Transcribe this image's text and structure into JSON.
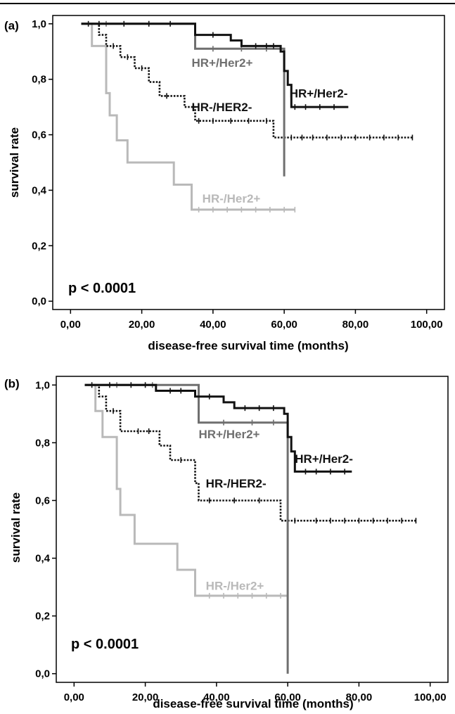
{
  "panels": [
    {
      "label": "(a)",
      "pvalue": "p < 0.0001"
    },
    {
      "label": "(b)",
      "pvalue": "p < 0.0001"
    }
  ],
  "chart_data": [
    {
      "type": "line",
      "subtype": "kaplan-meier step",
      "xlabel": "disease-free survival time (months)",
      "ylabel": "survival rate",
      "xlim": [
        -5,
        105
      ],
      "ylim": [
        -0.03,
        1.03
      ],
      "xticks": [
        0,
        20,
        40,
        60,
        80,
        100
      ],
      "xticklabels": [
        "0,00",
        "20,00",
        "40,00",
        "60,00",
        "80,00",
        "100,00"
      ],
      "yticks": [
        0,
        0.2,
        0.4,
        0.6,
        0.8,
        1.0
      ],
      "yticklabels": [
        "0,0",
        "0,2",
        "0,4",
        "0,6",
        "0,8",
        "1,0"
      ],
      "annotation": "p < 0.0001",
      "series": [
        {
          "name": "HR+/Her2-",
          "color": "#111111",
          "style": "solid",
          "points": [
            [
              3,
              1.0
            ],
            [
              35,
              1.0
            ],
            [
              35,
              0.96
            ],
            [
              45,
              0.96
            ],
            [
              45,
              0.94
            ],
            [
              48,
              0.94
            ],
            [
              48,
              0.92
            ],
            [
              59,
              0.92
            ],
            [
              59,
              0.9
            ],
            [
              60,
              0.9
            ],
            [
              60,
              0.83
            ],
            [
              61,
              0.83
            ],
            [
              61,
              0.78
            ],
            [
              62,
              0.78
            ],
            [
              62,
              0.7
            ],
            [
              78,
              0.7
            ]
          ],
          "censor_x": [
            8,
            15,
            22,
            28,
            40,
            52,
            55,
            57,
            63,
            66,
            70,
            74
          ],
          "label_xy": [
            61.5,
            0.735
          ]
        },
        {
          "name": "HR+/Her2+",
          "color": "#6f6f6f",
          "style": "solid",
          "points": [
            [
              3,
              1.0
            ],
            [
              35,
              1.0
            ],
            [
              35,
              0.91
            ],
            [
              60,
              0.91
            ],
            [
              60,
              0.45
            ]
          ],
          "censor_x": [
            10,
            22,
            40,
            48,
            55
          ],
          "label_xy": [
            34,
            0.845
          ]
        },
        {
          "name": "HR-/HER2-",
          "color": "#111111",
          "style": "dotted",
          "points": [
            [
              3,
              1.0
            ],
            [
              8,
              1.0
            ],
            [
              8,
              0.96
            ],
            [
              10,
              0.96
            ],
            [
              10,
              0.92
            ],
            [
              14,
              0.92
            ],
            [
              14,
              0.88
            ],
            [
              18,
              0.88
            ],
            [
              18,
              0.84
            ],
            [
              22,
              0.84
            ],
            [
              22,
              0.79
            ],
            [
              25,
              0.79
            ],
            [
              25,
              0.74
            ],
            [
              32,
              0.74
            ],
            [
              32,
              0.7
            ],
            [
              35,
              0.7
            ],
            [
              35,
              0.65
            ],
            [
              57,
              0.65
            ],
            [
              57,
              0.59
            ],
            [
              96,
              0.59
            ]
          ],
          "censor_x": [
            5,
            12,
            16,
            20,
            27,
            36,
            40,
            45,
            50,
            55,
            62,
            65,
            68,
            72,
            76,
            80,
            84,
            88,
            92,
            96
          ],
          "label_xy": [
            34,
            0.685
          ]
        },
        {
          "name": "HR-/Her2+",
          "color": "#b9b9b9",
          "style": "solid",
          "points": [
            [
              3,
              1.0
            ],
            [
              6,
              1.0
            ],
            [
              6,
              0.92
            ],
            [
              10,
              0.92
            ],
            [
              10,
              0.75
            ],
            [
              11,
              0.75
            ],
            [
              11,
              0.67
            ],
            [
              13,
              0.67
            ],
            [
              13,
              0.58
            ],
            [
              16,
              0.58
            ],
            [
              16,
              0.5
            ],
            [
              29,
              0.5
            ],
            [
              29,
              0.42
            ],
            [
              34,
              0.42
            ],
            [
              34,
              0.33
            ],
            [
              63,
              0.33
            ]
          ],
          "censor_x": [
            36,
            40,
            44,
            48,
            52,
            56,
            60,
            63
          ],
          "label_xy": [
            37,
            0.355
          ]
        }
      ]
    },
    {
      "type": "line",
      "subtype": "kaplan-meier step",
      "xlabel": "disease-free survival time (months)",
      "ylabel": "survival rate",
      "xlim": [
        -5,
        105
      ],
      "ylim": [
        -0.03,
        1.03
      ],
      "xticks": [
        0,
        20,
        40,
        60,
        80,
        100
      ],
      "xticklabels": [
        "0,00",
        "20,00",
        "40,00",
        "60,00",
        "80,00",
        "100,00"
      ],
      "yticks": [
        0,
        0.2,
        0.4,
        0.6,
        0.8,
        1.0
      ],
      "yticklabels": [
        "0,0",
        "0,2",
        "0,4",
        "0,6",
        "0,8",
        "1,0"
      ],
      "annotation": "p < 0.0001",
      "series": [
        {
          "name": "HR+/Her2-",
          "color": "#111111",
          "style": "solid",
          "points": [
            [
              3,
              1.0
            ],
            [
              23,
              1.0
            ],
            [
              23,
              0.98
            ],
            [
              34,
              0.98
            ],
            [
              34,
              0.96
            ],
            [
              42,
              0.96
            ],
            [
              42,
              0.94
            ],
            [
              45,
              0.94
            ],
            [
              45,
              0.92
            ],
            [
              59,
              0.92
            ],
            [
              59,
              0.9
            ],
            [
              60,
              0.9
            ],
            [
              60,
              0.82
            ],
            [
              61,
              0.82
            ],
            [
              61,
              0.77
            ],
            [
              62,
              0.77
            ],
            [
              62,
              0.7
            ],
            [
              78,
              0.7
            ]
          ],
          "censor_x": [
            10,
            16,
            20,
            27,
            30,
            38,
            48,
            52,
            56,
            65,
            68,
            72,
            76
          ],
          "label_xy": [
            62,
            0.73
          ]
        },
        {
          "name": "HR+/Her2+",
          "color": "#6f6f6f",
          "style": "solid",
          "points": [
            [
              3,
              1.0
            ],
            [
              35,
              1.0
            ],
            [
              35,
              0.87
            ],
            [
              60,
              0.87
            ],
            [
              60,
              0.0
            ]
          ],
          "censor_x": [
            12,
            22,
            42,
            50,
            56
          ],
          "label_xy": [
            35,
            0.815
          ]
        },
        {
          "name": "HR-/HER2-",
          "color": "#111111",
          "style": "dotted",
          "points": [
            [
              3,
              1.0
            ],
            [
              7,
              1.0
            ],
            [
              7,
              0.96
            ],
            [
              9,
              0.96
            ],
            [
              9,
              0.91
            ],
            [
              13,
              0.91
            ],
            [
              13,
              0.84
            ],
            [
              24,
              0.84
            ],
            [
              24,
              0.79
            ],
            [
              27,
              0.79
            ],
            [
              27,
              0.74
            ],
            [
              34,
              0.74
            ],
            [
              34,
              0.66
            ],
            [
              35,
              0.66
            ],
            [
              35,
              0.6
            ],
            [
              58,
              0.6
            ],
            [
              58,
              0.53
            ],
            [
              96,
              0.53
            ]
          ],
          "censor_x": [
            5,
            11,
            18,
            21,
            30,
            38,
            45,
            52,
            62,
            68,
            72,
            76,
            80,
            84,
            88,
            92,
            96
          ],
          "label_xy": [
            37,
            0.645
          ]
        },
        {
          "name": "HR-/Her2+",
          "color": "#b9b9b9",
          "style": "solid",
          "points": [
            [
              3,
              1.0
            ],
            [
              6,
              1.0
            ],
            [
              6,
              0.91
            ],
            [
              8,
              0.91
            ],
            [
              8,
              0.82
            ],
            [
              12,
              0.82
            ],
            [
              12,
              0.64
            ],
            [
              13,
              0.64
            ],
            [
              13,
              0.55
            ],
            [
              17,
              0.55
            ],
            [
              17,
              0.45
            ],
            [
              29,
              0.45
            ],
            [
              29,
              0.36
            ],
            [
              34,
              0.36
            ],
            [
              34,
              0.27
            ],
            [
              60,
              0.27
            ]
          ],
          "censor_x": [
            38,
            42,
            46,
            50,
            54,
            58
          ],
          "label_xy": [
            37,
            0.29
          ]
        }
      ]
    }
  ]
}
